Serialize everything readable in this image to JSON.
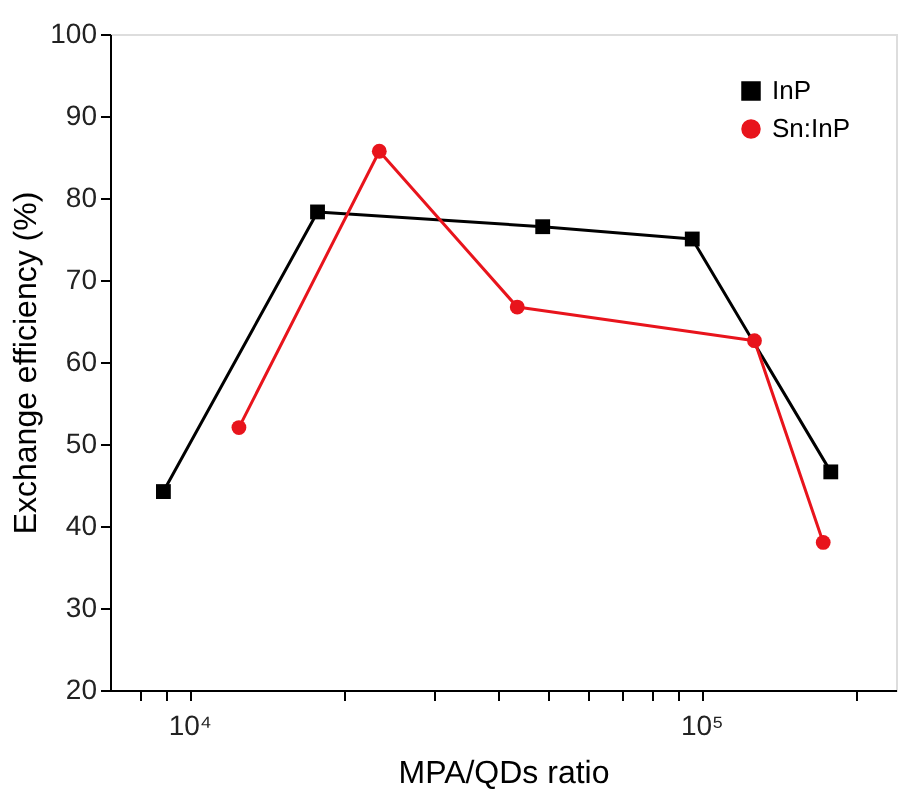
{
  "chart_data": {
    "type": "line",
    "xlabel": "MPA/QDs ratio",
    "ylabel": "Exchange efficiency (%)",
    "log": "x",
    "xlim": [
      7000,
      240000
    ],
    "xticks": [
      {
        "value": 8000,
        "label": null
      },
      {
        "value": 9000,
        "label": null
      },
      {
        "value": 10000,
        "label": "10⁴"
      },
      {
        "value": 20000,
        "label": null
      },
      {
        "value": 30000,
        "label": null
      },
      {
        "value": 40000,
        "label": null
      },
      {
        "value": 50000,
        "label": null
      },
      {
        "value": 60000,
        "label": null
      },
      {
        "value": 70000,
        "label": null
      },
      {
        "value": 80000,
        "label": null
      },
      {
        "value": 90000,
        "label": null
      },
      {
        "value": 100000,
        "label": "10⁵"
      },
      {
        "value": 200000,
        "label": null
      }
    ],
    "ylim": [
      20,
      100
    ],
    "yticks": [
      20,
      30,
      40,
      50,
      60,
      70,
      80,
      90,
      100
    ],
    "grid": false,
    "legend": "top right",
    "line_style": "solid",
    "series": [
      {
        "name": "InP",
        "color": "#000000",
        "marker": "square",
        "x": [
          8900,
          17800,
          49000,
          96000,
          179000
        ],
        "values": [
          44.2,
          78.3,
          76.5,
          75.0,
          46.6
        ]
      },
      {
        "name": "Sn:InP",
        "color": "#e8141c",
        "marker": "circle",
        "x": [
          12500,
          23500,
          43700,
          127000,
          173000
        ],
        "values": [
          52.0,
          85.7,
          66.7,
          62.6,
          38.0
        ]
      }
    ]
  }
}
